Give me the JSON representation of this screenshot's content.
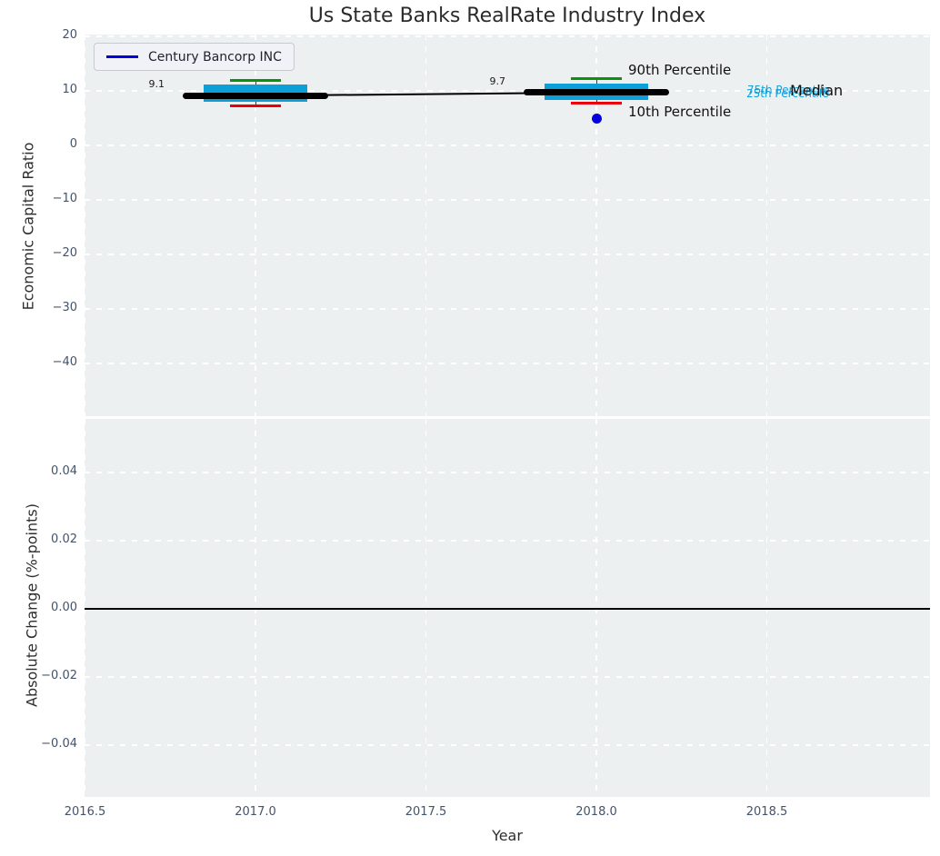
{
  "colors": {
    "axes_background": "#edf0f1",
    "grid": "#ffffff",
    "iqr_box": "#0d9fd8",
    "p90_cap": "#0a930a",
    "p10_cap": "#e8000b",
    "median_line": "#000000",
    "company_marker": "#0000e0",
    "cyan_annotation": "#15a0d8",
    "tick_label": "#43536a"
  },
  "chart_data": [
    {
      "type": "boxplot-timeseries",
      "title": "Us State Banks RealRate Industry Index",
      "ylabel": "Economic Capital Ratio",
      "xlim": [
        2016.5,
        2018.98
      ],
      "ylim": [
        -49,
        20.7
      ],
      "x_ticks": [
        2016.5,
        2017.0,
        2017.5,
        2018.0,
        2018.5
      ],
      "x_tick_labels": [
        "2016.5",
        "2017.0",
        "2017.5",
        "2018.0",
        "2018.5"
      ],
      "y_ticks": [
        20,
        10,
        0,
        -10,
        -20,
        -30,
        -40
      ],
      "y_tick_labels": [
        "20",
        "10",
        "0",
        "−10",
        "−20",
        "−30",
        "−40"
      ],
      "grid": "white dashed, on",
      "legend": {
        "label": "Century Bancorp INC",
        "line_color": "#0000e0",
        "position": "upper left"
      },
      "boxes": [
        {
          "year": 2017,
          "p90": 12.0,
          "p75": 11.2,
          "median": 9.1,
          "p25": 8.0,
          "p10": 7.3,
          "median_label": "9.1"
        },
        {
          "year": 2018,
          "p90": 12.2,
          "p75": 11.3,
          "median": 9.7,
          "p25": 8.4,
          "p10": 7.7,
          "median_label": "9.7"
        }
      ],
      "median_connector": {
        "x": [
          2017,
          2018
        ],
        "y": [
          9.1,
          9.7
        ]
      },
      "company_points": [
        {
          "year": 2018,
          "value": 4.9
        }
      ],
      "annotations": {
        "p90": "90th Percentile",
        "p10": "10th Percentile",
        "p75": "75th Percentile",
        "p25": "25th Percentile",
        "median": "Median"
      }
    },
    {
      "type": "line",
      "ylabel": "Absolute Change (%-points)",
      "xlabel": "Year",
      "xlim": [
        2016.5,
        2018.98
      ],
      "ylim": [
        -0.0557,
        0.0557
      ],
      "y_ticks": [
        0.04,
        0.02,
        0.0,
        -0.02,
        -0.04
      ],
      "y_tick_labels": [
        "0.04",
        "0.02",
        "0.00",
        "−0.02",
        "−0.04"
      ],
      "zero_line": 0.0,
      "series": []
    }
  ]
}
